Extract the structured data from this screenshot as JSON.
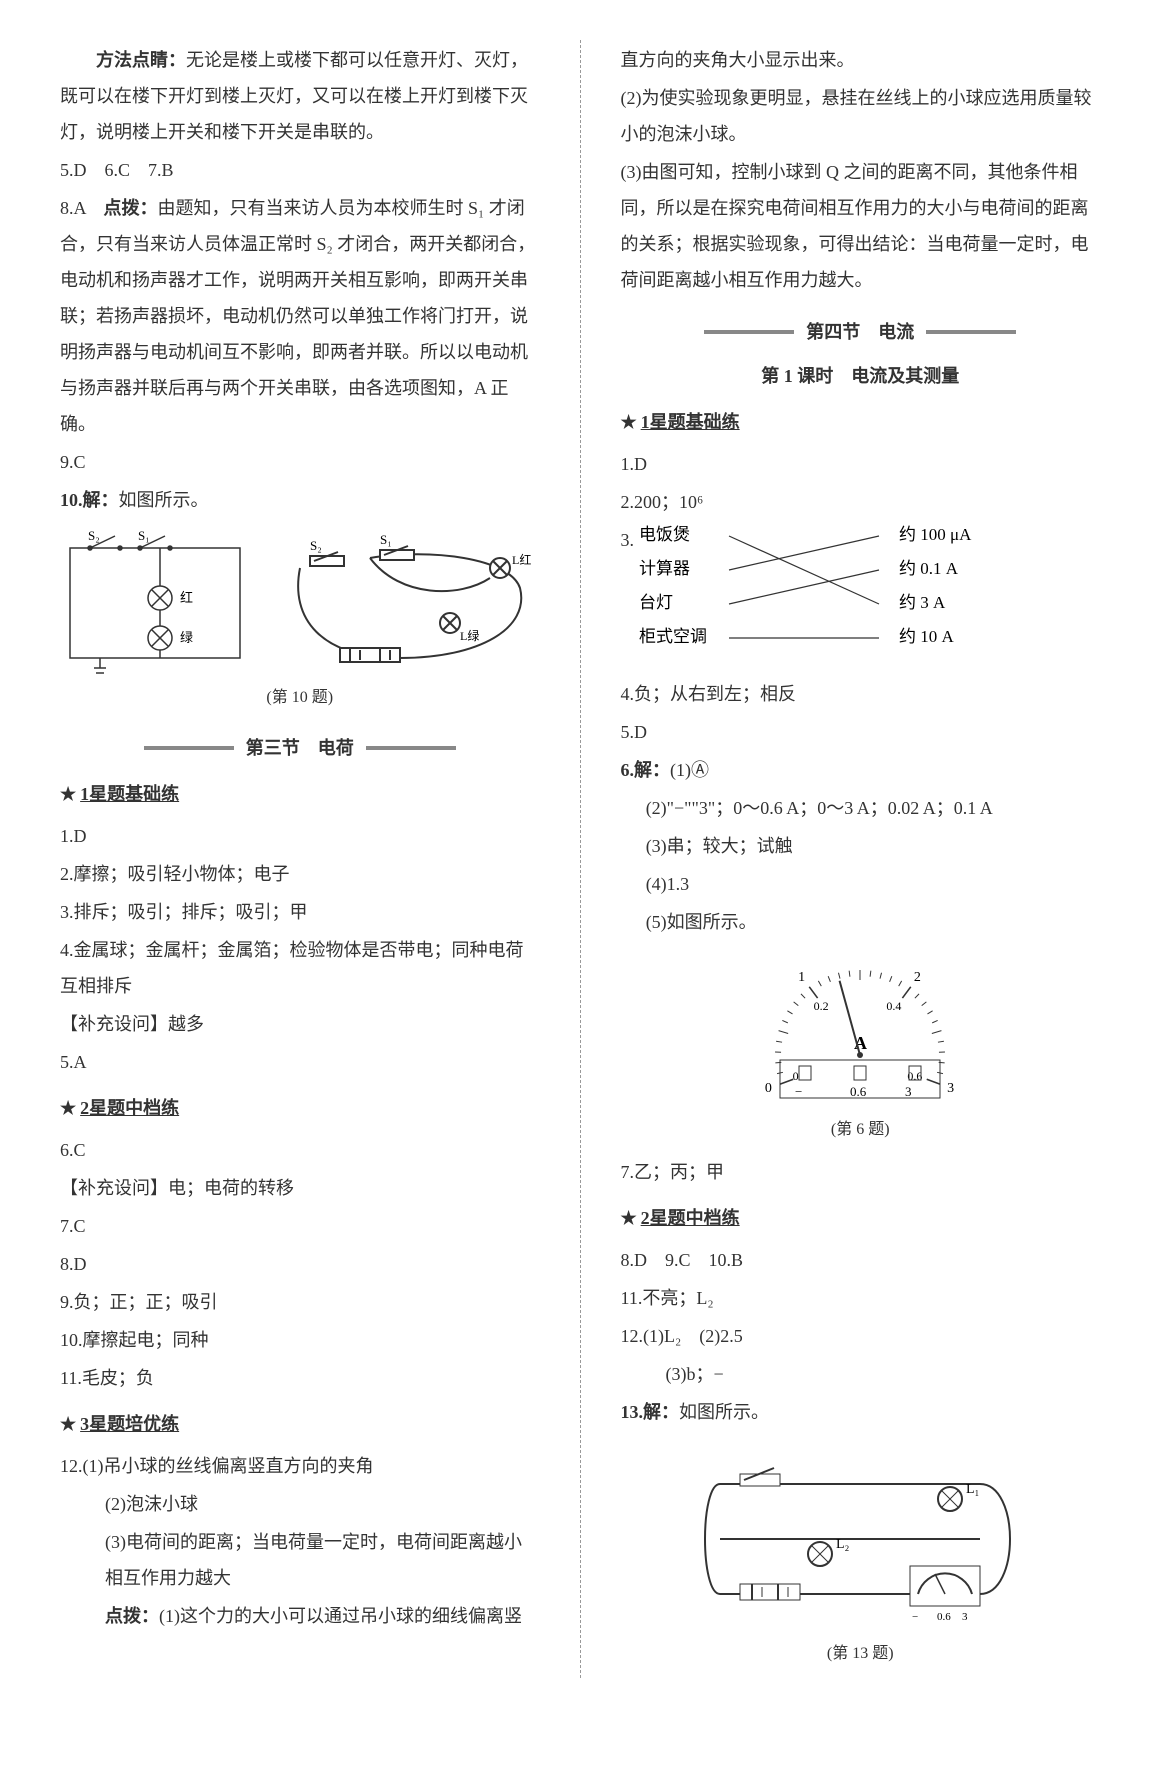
{
  "left": {
    "p_method_label": "方法点睛：",
    "p_method_text": "无论是楼上或楼下都可以任意开灯、灭灯，既可以在楼下开灯到楼上灭灯，又可以在楼上开灯到楼下灭灯，说明楼上开关和楼下开关是串联的。",
    "q5_7": "5.D　6.C　7.B",
    "q8_num": "8.A　",
    "q8_label": "点拨：",
    "q8_text": "由题知，只有当来访人员为本校师生时 S₁ 才闭合，只有当来访人员体温正常时 S₂ 才闭合，两开关都闭合，电动机和扬声器才工作，说明两开关相互影响，即两开关串联；若扬声器损坏，电动机仍然可以单独工作将门打开，说明扬声器与电动机间互不影响，即两者并联。所以以电动机与扬声器并联后再与两个开关串联，由各选项图知，A 正确。",
    "q9": "9.C",
    "q10_label": "10.解：",
    "q10_text": "如图所示。",
    "fig10_caption": "(第 10 题)",
    "circuit_labels": {
      "S1": "S₁",
      "S2": "S₂",
      "red": "红",
      "green": "绿",
      "Lred": "L红",
      "Lgreen": "L绿"
    },
    "section3_title": "第三节　电荷",
    "star1": "1星题基础练",
    "s3_q1": "1.D",
    "s3_q2": "2.摩擦；吸引轻小物体；电子",
    "s3_q3": "3.排斥；吸引；排斥；吸引；甲",
    "s3_q4": "4.金属球；金属杆；金属箔；检验物体是否带电；同种电荷互相排斥",
    "s3_supp1": "【补充设问】越多",
    "s3_q5": "5.A",
    "star2": "2星题中档练",
    "s3_q6": "6.C",
    "s3_supp2": "【补充设问】电；电荷的转移",
    "s3_q7": "7.C",
    "s3_q8": "8.D",
    "s3_q9": "9.负；正；正；吸引",
    "s3_q10": "10.摩擦起电；同种",
    "s3_q11": "11.毛皮；负",
    "star3": "3星题培优练",
    "s3_q12_1": "12.(1)吊小球的丝线偏离竖直方向的夹角",
    "s3_q12_2": "(2)泡沫小球",
    "s3_q12_3": "(3)电荷间的距离；当电荷量一定时，电荷间距离越小相互作用力越大",
    "s3_q12_hint_label": "点拨：",
    "s3_q12_hint": "(1)这个力的大小可以通过吊小球的细线偏离竖"
  },
  "right": {
    "cont1": "直方向的夹角大小显示出来。",
    "cont2": "(2)为使实验现象更明显，悬挂在丝线上的小球应选用质量较小的泡沫小球。",
    "cont3": "(3)由图可知，控制小球到 Q 之间的距离不同，其他条件相同，所以是在探究电荷间相互作用力的大小与电荷间的距离的关系；根据实验现象，可得出结论：当电荷量一定时，电荷间距离越小相互作用力越大。",
    "section4_title": "第四节　电流",
    "section4_sub": "第 1 课时　电流及其测量",
    "star1": "1星题基础练",
    "q1": "1.D",
    "q2": "2.200；10⁶",
    "q3_prefix": "3.",
    "match": {
      "left": [
        "电饭煲",
        "计算器",
        "台灯",
        "柜式空调"
      ],
      "right": [
        "约 100 μA",
        "约 0.1 A",
        "约 3 A",
        "约 10 A"
      ],
      "edges": [
        [
          0,
          2
        ],
        [
          1,
          0
        ],
        [
          2,
          1
        ],
        [
          3,
          3
        ]
      ],
      "line_color": "#333"
    },
    "q4": "4.负；从右到左；相反",
    "q5": "5.D",
    "q6_head": "6.解：",
    "q6_1": "(1)Ⓐ",
    "q6_2": "(2)\"−\"\"3\"；0～0.6 A；0～3 A；0.02 A；0.1 A",
    "q6_3": "(3)串；较大；试触",
    "q6_4": "(4)1.3",
    "q6_5": "(5)如图所示。",
    "fig6_caption": "(第 6 题)",
    "meter": {
      "ticks_top": [
        "0",
        "1",
        "2",
        "3"
      ],
      "ticks_bot": [
        "0",
        "0.2",
        "0.4",
        "0.6"
      ],
      "unit": "A",
      "terminals": [
        "−",
        "0.6",
        "3"
      ],
      "color": "#333"
    },
    "q7": "7.乙；丙；甲",
    "star2": "2星题中档练",
    "q8_10": "8.D　9.C　10.B",
    "q11": "11.不亮；L₂",
    "q12_1": "12.(1)L₂　(2)2.5",
    "q12_2": "(3)b；−",
    "q13_label": "13.解：",
    "q13_text": "如图所示。",
    "fig13_caption": "(第 13 题)",
    "circuit13": {
      "L1": "L₁",
      "L2": "L₂",
      "terminals": [
        "−",
        "0.6",
        "3"
      ]
    }
  },
  "colors": {
    "text": "#333333",
    "stroke": "#333333",
    "rule": "#888888"
  }
}
